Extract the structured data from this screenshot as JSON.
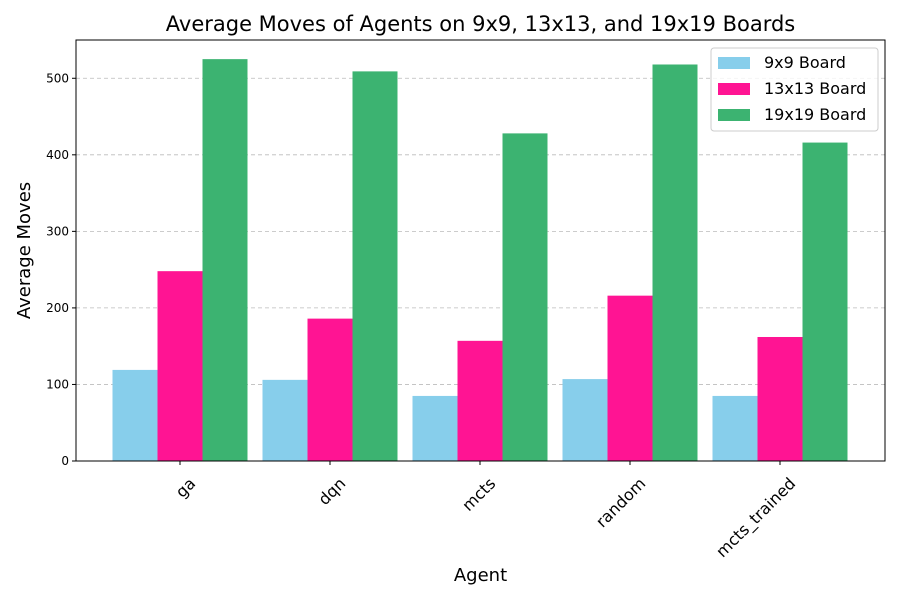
{
  "chart_data": {
    "type": "bar",
    "title": "Average Moves of Agents on 9x9, 13x13, and 19x19 Boards",
    "xlabel": "Agent",
    "ylabel": "Average Moves",
    "categories": [
      "ga",
      "dqn",
      "mcts",
      "random",
      "mcts_trained"
    ],
    "series": [
      {
        "name": "9x9 Board",
        "color": "#87CEEB",
        "values": [
          119,
          106,
          85,
          107,
          85
        ]
      },
      {
        "name": "13x13 Board",
        "color": "#FF1493",
        "values": [
          248,
          186,
          157,
          216,
          162
        ]
      },
      {
        "name": "19x19 Board",
        "color": "#3CB371",
        "values": [
          525,
          509,
          428,
          518,
          416
        ]
      }
    ],
    "ylim": [
      0,
      550
    ],
    "yticks": [
      0,
      100,
      200,
      300,
      400,
      500
    ],
    "grid": "y dashed",
    "legend_position": "top-right",
    "xtick_rotation": 45
  }
}
